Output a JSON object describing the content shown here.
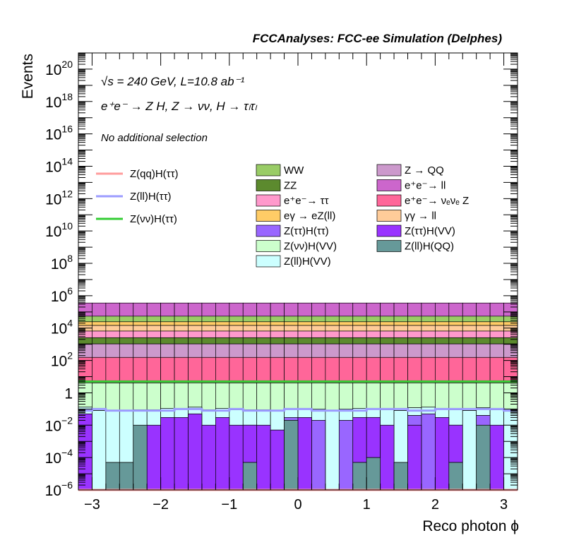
{
  "chart_data": {
    "type": "area",
    "title": "FCCAnalyses: FCC-ee Simulation (Delphes)",
    "xlabel": "Reco photon ϕ",
    "ylabel": "Events",
    "x_range": [
      -3.2,
      3.2
    ],
    "y_range": [
      1e-06,
      1e+21
    ],
    "y_scale": "log",
    "x_ticks": [
      -3,
      -2,
      -1,
      0,
      1,
      2,
      3
    ],
    "x_tick_labels": [
      "−3",
      "−2",
      "−1",
      "0",
      "1",
      "2",
      "3"
    ],
    "y_ticks": [
      {
        "value": 1e-06,
        "base": "10",
        "exp": "−6"
      },
      {
        "value": 0.0001,
        "base": "10",
        "exp": "−4"
      },
      {
        "value": 0.01,
        "base": "10",
        "exp": "−2"
      },
      {
        "value": 1,
        "base": "1",
        "exp": ""
      },
      {
        "value": 100.0,
        "base": "10",
        "exp": "2"
      },
      {
        "value": 10000.0,
        "base": "10",
        "exp": "4"
      },
      {
        "value": 1000000.0,
        "base": "10",
        "exp": "6"
      },
      {
        "value": 100000000.0,
        "base": "10",
        "exp": "8"
      },
      {
        "value": 10000000000.0,
        "base": "10",
        "exp": "10"
      },
      {
        "value": 1000000000000.0,
        "base": "10",
        "exp": "12"
      },
      {
        "value": 100000000000000.0,
        "base": "10",
        "exp": "14"
      },
      {
        "value": 1e+16,
        "base": "10",
        "exp": "16"
      },
      {
        "value": 1e+18,
        "base": "10",
        "exp": "18"
      },
      {
        "value": 1e+20,
        "base": "10",
        "exp": "20"
      }
    ],
    "grid": false,
    "annotations": {
      "sqrt_s_line": "√s = 240 GeV, L=10.8 ab⁻¹",
      "process_line": "e⁺e⁻ → Z H, Z → νν, H → τₗτₗ",
      "selection_line": "No additional selection"
    },
    "signal_legend": [
      {
        "name": "Z(qq)H(ττ)",
        "color": "#ff9c9c"
      },
      {
        "name": "Z(ll)H(ττ)",
        "color": "#9c9cff"
      },
      {
        "name": "Z(νν)H(ττ)",
        "color": "#33cc33"
      }
    ],
    "background_legend_col1": [
      {
        "name": "WW",
        "color": "#99cc66"
      },
      {
        "name": "ZZ",
        "color": "#5c8a2e"
      },
      {
        "name": "e⁺e⁻→ ττ",
        "color": "#ff99cc"
      },
      {
        "name": "eγ → eZ(ll)",
        "color": "#ffcc66"
      },
      {
        "name": "Z(ττ)H(ττ)",
        "color": "#9966ff"
      },
      {
        "name": "Z(νν)H(VV)",
        "color": "#ccffcc"
      },
      {
        "name": "Z(ll)H(VV)",
        "color": "#ccffff"
      }
    ],
    "background_legend_col2": [
      {
        "name": "Z → QQ",
        "color": "#cc99cc"
      },
      {
        "name": "e⁺e⁻→ ll",
        "color": "#cc66cc"
      },
      {
        "name": "e⁺e⁻→ νₑνₑ Z",
        "color": "#ff6699"
      },
      {
        "name": "γγ → ll",
        "color": "#ffcc99"
      },
      {
        "name": "Z(ττ)H(VV)",
        "color": "#9933ff"
      },
      {
        "name": "Z(ll)H(QQ)",
        "color": "#669999"
      }
    ],
    "bin_edges": [
      -3.2,
      -3.0,
      -2.8,
      -2.6,
      -2.4,
      -2.2,
      -2.0,
      -1.8,
      -1.6,
      -1.4,
      -1.2,
      -1.0,
      -0.8,
      -0.6,
      -0.4,
      -0.2,
      0.0,
      0.2,
      0.4,
      0.6,
      0.8,
      1.0,
      1.2,
      1.4,
      1.6,
      1.8,
      2.0,
      2.2,
      2.4,
      2.6,
      2.8,
      3.0,
      3.2
    ],
    "stack_bottom_to_top": [
      {
        "name": "Z(ll)H(QQ)",
        "color": "#669999",
        "values": [
          0,
          0,
          5e-05,
          5e-05,
          0.01,
          0,
          0,
          0,
          0,
          0,
          0,
          0,
          5e-05,
          0,
          0,
          0.02,
          0,
          0,
          0,
          0,
          5e-05,
          0.0001,
          0,
          5e-05,
          0,
          0,
          0,
          5e-05,
          0,
          0.01,
          0,
          0
        ]
      },
      {
        "name": "Z(ττ)H(VV)",
        "color": "#9933ff",
        "values": [
          0.05,
          0,
          0,
          0,
          0,
          0.01,
          0.03,
          0.03,
          0.05,
          0.01,
          0.03,
          0.01,
          0.01,
          0.01,
          0.005,
          0,
          0.03,
          0,
          0,
          0,
          0.03,
          0.03,
          0.01,
          0,
          0.01,
          0,
          0.03,
          0.01,
          0,
          0,
          0.01,
          0
        ]
      },
      {
        "name": "Z(ττ)H(ττ)",
        "color": "#9966ff",
        "values": [
          0,
          0,
          0,
          0,
          0,
          0,
          0,
          0,
          0,
          0,
          0,
          0,
          0,
          0,
          0,
          0.01,
          0,
          0.02,
          0,
          0.02,
          0,
          0,
          0,
          0,
          0.03,
          0.05,
          0,
          0,
          0,
          0.03,
          0,
          0
        ]
      },
      {
        "name": "Z(ll)H(VV)",
        "color": "#ccffff",
        "values": [
          0.08,
          0.08,
          0.08,
          0.08,
          0.08,
          0.08,
          0.08,
          0.08,
          0.08,
          0.08,
          0.08,
          0.08,
          0.08,
          0.08,
          0.08,
          0.08,
          0.08,
          0.08,
          0.08,
          0.08,
          0.08,
          0.08,
          0.08,
          0.08,
          0.08,
          0.08,
          0.08,
          0.08,
          0.08,
          0.08,
          0.08,
          0.08
        ]
      },
      {
        "name": "Z(νν)H(VV)",
        "color": "#ccffcc",
        "values": [
          4,
          4,
          4,
          4,
          4,
          4,
          4,
          4,
          4,
          4,
          4,
          4,
          4,
          4,
          4,
          4,
          4,
          4,
          4,
          4,
          4,
          4,
          4,
          4,
          4,
          4,
          4,
          4,
          4,
          4,
          4,
          4
        ]
      },
      {
        "name": "e⁺e⁻→ νₑνₑ Z",
        "color": "#ff6699",
        "values": [
          150,
          150,
          150,
          150,
          150,
          150,
          150,
          150,
          150,
          150,
          150,
          150,
          150,
          150,
          150,
          150,
          150,
          150,
          150,
          150,
          150,
          150,
          150,
          150,
          150,
          150,
          150,
          150,
          150,
          150,
          150,
          150
        ]
      },
      {
        "name": "Z → QQ",
        "color": "#cc99cc",
        "values": [
          900,
          900,
          900,
          900,
          900,
          900,
          900,
          900,
          900,
          900,
          900,
          900,
          900,
          900,
          900,
          900,
          900,
          900,
          900,
          900,
          900,
          900,
          900,
          900,
          900,
          900,
          900,
          900,
          900,
          900,
          900,
          900
        ]
      },
      {
        "name": "ZZ",
        "color": "#5c8a2e",
        "values": [
          1500,
          1500,
          1500,
          1500,
          1500,
          1500,
          1500,
          1500,
          1500,
          1500,
          1500,
          1500,
          1500,
          1500,
          1500,
          1500,
          1500,
          1500,
          1500,
          1500,
          1500,
          1500,
          1500,
          1500,
          1500,
          1500,
          1500,
          1500,
          1500,
          1500,
          1500,
          1500
        ]
      },
      {
        "name": "e⁺e⁻→ ττ",
        "color": "#ff99cc",
        "values": [
          4000,
          4000,
          4000,
          4000,
          4000,
          4000,
          4000,
          4000,
          4000,
          4000,
          4000,
          4000,
          4000,
          4000,
          4000,
          4000,
          4000,
          4000,
          4000,
          4000,
          4000,
          4000,
          4000,
          4000,
          4000,
          4000,
          4000,
          4000,
          4000,
          4000,
          4000,
          4000
        ]
      },
      {
        "name": "γγ → ll",
        "color": "#ffcc99",
        "values": [
          8000,
          8000,
          8000,
          8000,
          8000,
          8000,
          8000,
          8000,
          8000,
          8000,
          8000,
          8000,
          8000,
          8000,
          8000,
          8000,
          8000,
          8000,
          8000,
          8000,
          8000,
          8000,
          8000,
          8000,
          8000,
          8000,
          8000,
          8000,
          8000,
          8000,
          8000,
          8000
        ]
      },
      {
        "name": "eγ → eZ(ll)",
        "color": "#ffcc66",
        "values": [
          10000,
          10000,
          10000,
          10000,
          10000,
          10000,
          10000,
          10000,
          10000,
          10000,
          10000,
          10000,
          10000,
          10000,
          10000,
          10000,
          10000,
          10000,
          10000,
          10000,
          10000,
          10000,
          10000,
          10000,
          10000,
          10000,
          10000,
          10000,
          10000,
          10000,
          10000,
          10000
        ]
      },
      {
        "name": "WW",
        "color": "#99cc66",
        "values": [
          30000,
          30000,
          30000,
          30000,
          30000,
          30000,
          30000,
          30000,
          30000,
          30000,
          30000,
          30000,
          30000,
          30000,
          30000,
          30000,
          30000,
          30000,
          30000,
          30000,
          30000,
          30000,
          30000,
          30000,
          30000,
          30000,
          30000,
          30000,
          30000,
          30000,
          30000,
          30000
        ]
      },
      {
        "name": "e⁺e⁻→ ll",
        "color": "#cc66cc",
        "values": [
          300000,
          300000,
          300000,
          300000,
          300000,
          300000,
          300000,
          300000,
          300000,
          300000,
          300000,
          300000,
          300000,
          300000,
          300000,
          300000,
          300000,
          300000,
          300000,
          300000,
          300000,
          300000,
          300000,
          300000,
          300000,
          300000,
          300000,
          300000,
          300000,
          300000,
          300000,
          300000
        ]
      }
    ],
    "signal_lines": [
      {
        "name": "Z(νν)H(ττ)",
        "color": "#33cc33",
        "values": [
          5,
          5,
          5,
          5,
          5,
          5,
          5,
          5,
          5,
          5,
          5,
          5,
          5,
          5,
          5,
          5,
          5,
          5,
          5,
          5,
          5,
          5,
          5,
          5,
          5,
          5,
          5,
          5,
          5,
          5,
          5,
          5
        ]
      },
      {
        "name": "Z(ll)H(ττ)",
        "color": "#9c9cff",
        "values": [
          0.08,
          0.1,
          0.08,
          0.08,
          0.08,
          0.08,
          0.08,
          0.1,
          0.1,
          0.08,
          0.08,
          0.1,
          0.08,
          0.08,
          0.08,
          0.1,
          0.1,
          0.08,
          0.08,
          0.08,
          0.08,
          0.1,
          0.1,
          0.1,
          0.08,
          0.08,
          0.1,
          0.1,
          0.1,
          0.1,
          0.1,
          0.08
        ]
      },
      {
        "name": "Z(qq)H(ττ)",
        "color": "#ff9c9c",
        "values": [
          1e-06,
          1e-06,
          1e-06,
          1e-06,
          1e-06,
          1e-06,
          1e-06,
          1e-06,
          1e-06,
          1e-06,
          1e-06,
          1e-06,
          1e-06,
          1e-06,
          1e-06,
          1e-06,
          1e-06,
          1e-06,
          1e-06,
          1e-06,
          1e-06,
          1e-06,
          1e-06,
          1e-06,
          1e-06,
          1e-06,
          1e-06,
          1e-06,
          1e-06,
          1e-06,
          1e-06,
          1e-06
        ]
      }
    ]
  }
}
